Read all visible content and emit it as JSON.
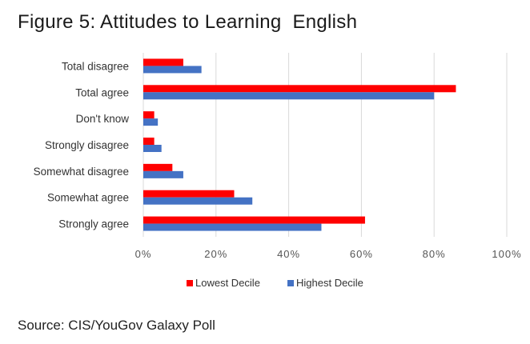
{
  "title": "Figure 5: Attitudes to Learning  English",
  "source": "Source: CIS/YouGov Galaxy Poll",
  "chart_data": {
    "type": "bar",
    "orientation": "horizontal",
    "categories": [
      "Total disagree",
      "Total agree",
      "Don't know",
      "Strongly disagree",
      "Somewhat disagree",
      "Somewhat agree",
      "Strongly agree"
    ],
    "series": [
      {
        "name": "Lowest Decile",
        "color": "#ff0000",
        "values": [
          11,
          86,
          3,
          3,
          8,
          25,
          61
        ]
      },
      {
        "name": "Highest Decile",
        "color": "#4472c4",
        "values": [
          16,
          80,
          4,
          5,
          11,
          30,
          49
        ]
      }
    ],
    "xlim": [
      0,
      100
    ],
    "ticks": [
      "0%",
      "20%",
      "40%",
      "60%",
      "80%",
      "100%"
    ],
    "tick_values": [
      0,
      20,
      40,
      60,
      80,
      100
    ],
    "grid": true,
    "legend_position": "bottom"
  }
}
